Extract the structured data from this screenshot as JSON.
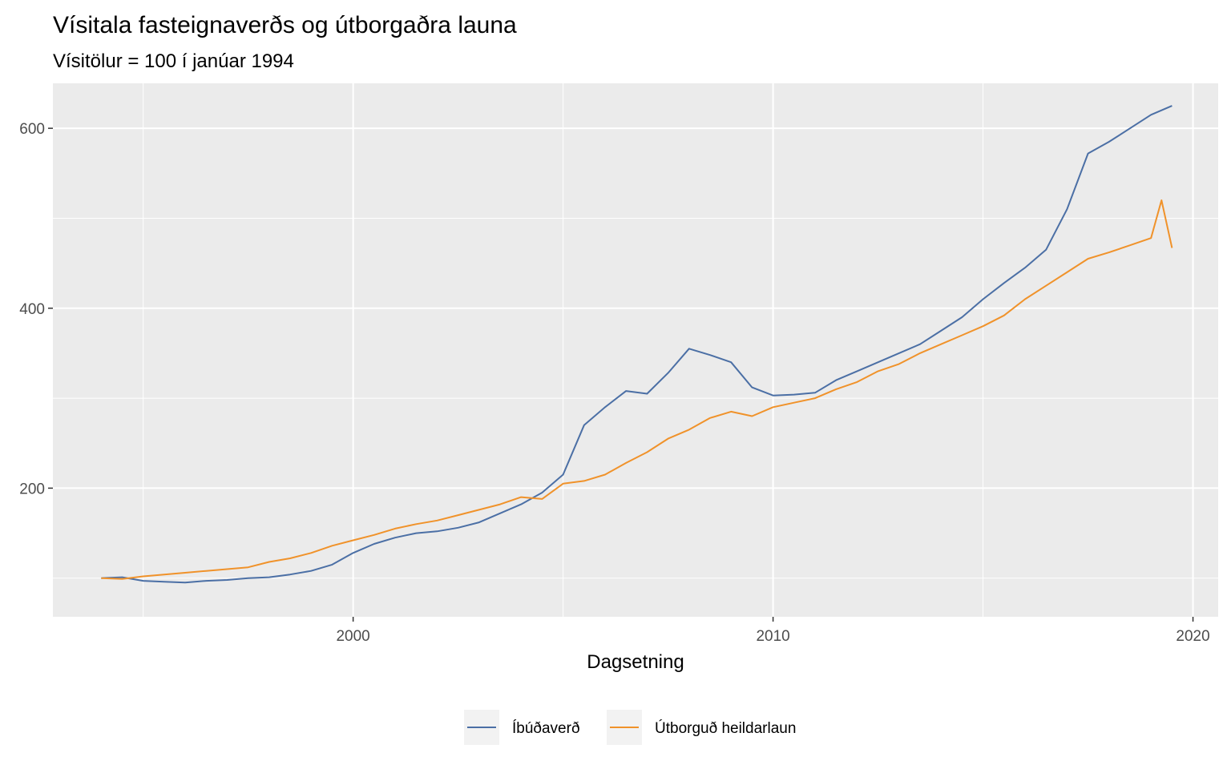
{
  "chart_data": {
    "type": "line",
    "title": "Vísitala fasteignaverðs og útborgaðra launa",
    "subtitle": "Vísitölur = 100 í janúar 1994",
    "xlabel": "Dagsetning",
    "ylabel": "",
    "xlim": [
      1992.85,
      2020.6
    ],
    "ylim": [
      57,
      650
    ],
    "x_ticks": [
      2000,
      2010,
      2020
    ],
    "x_tick_labels": [
      "2000",
      "2010",
      "2020"
    ],
    "y_ticks": [
      200,
      400,
      600
    ],
    "y_tick_labels": [
      "200",
      "400",
      "600"
    ],
    "x_minor_gridlines": [
      1995,
      2005,
      2015
    ],
    "y_minor_gridlines": [
      100,
      300,
      500
    ],
    "grid": true,
    "background": "#ebebeb",
    "legend_position": "bottom",
    "series": [
      {
        "name": "Íbúðaverð",
        "color": "#4b6fa5",
        "x": [
          1994.0,
          1994.5,
          1995.0,
          1995.5,
          1996.0,
          1996.5,
          1997.0,
          1997.5,
          1998.0,
          1998.5,
          1999.0,
          1999.5,
          2000.0,
          2000.5,
          2001.0,
          2001.5,
          2002.0,
          2002.5,
          2003.0,
          2003.5,
          2004.0,
          2004.5,
          2005.0,
          2005.5,
          2006.0,
          2006.5,
          2007.0,
          2007.5,
          2008.0,
          2008.5,
          2009.0,
          2009.5,
          2010.0,
          2010.5,
          2011.0,
          2011.5,
          2012.0,
          2012.5,
          2013.0,
          2013.5,
          2014.0,
          2014.5,
          2015.0,
          2015.5,
          2016.0,
          2016.5,
          2017.0,
          2017.5,
          2018.0,
          2018.5,
          2019.0,
          2019.5
        ],
        "y": [
          100,
          101,
          97,
          96,
          95,
          97,
          98,
          100,
          101,
          104,
          108,
          115,
          128,
          138,
          145,
          150,
          152,
          156,
          162,
          172,
          182,
          195,
          215,
          270,
          290,
          308,
          305,
          328,
          355,
          348,
          340,
          312,
          303,
          304,
          306,
          320,
          330,
          340,
          350,
          360,
          375,
          390,
          410,
          428,
          445,
          465,
          510,
          572,
          585,
          600,
          615,
          625
        ]
      },
      {
        "name": "Útborguð heildarlaun",
        "color": "#f0922a",
        "x": [
          1994.0,
          1994.5,
          1995.0,
          1995.5,
          1996.0,
          1996.5,
          1997.0,
          1997.5,
          1998.0,
          1998.5,
          1999.0,
          1999.5,
          2000.0,
          2000.5,
          2001.0,
          2001.5,
          2002.0,
          2002.5,
          2003.0,
          2003.5,
          2004.0,
          2004.5,
          2005.0,
          2005.5,
          2006.0,
          2006.5,
          2007.0,
          2007.5,
          2008.0,
          2008.5,
          2009.0,
          2009.5,
          2010.0,
          2010.5,
          2011.0,
          2011.5,
          2012.0,
          2012.5,
          2013.0,
          2013.5,
          2014.0,
          2014.5,
          2015.0,
          2015.5,
          2016.0,
          2016.5,
          2017.0,
          2017.5,
          2018.0,
          2018.5,
          2019.0,
          2019.25,
          2019.5
        ],
        "y": [
          100,
          99,
          102,
          104,
          106,
          108,
          110,
          112,
          118,
          122,
          128,
          136,
          142,
          148,
          155,
          160,
          164,
          170,
          176,
          182,
          190,
          188,
          205,
          208,
          215,
          228,
          240,
          255,
          265,
          278,
          285,
          280,
          290,
          295,
          300,
          310,
          318,
          330,
          338,
          350,
          360,
          370,
          380,
          392,
          410,
          425,
          440,
          455,
          462,
          470,
          478,
          520,
          467
        ]
      }
    ]
  }
}
